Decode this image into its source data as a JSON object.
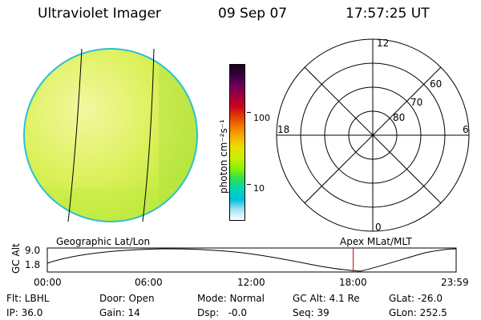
{
  "header": {
    "instrument": "Ultraviolet Imager",
    "date": "09 Sep 07",
    "time": "17:57:25 UT"
  },
  "colorbar": {
    "unit_label": "photon cm⁻²s⁻¹",
    "ticks": [
      "100",
      "10"
    ],
    "colors": [
      "#1a0018",
      "#3a0040",
      "#6a005a",
      "#a0003a",
      "#cc0020",
      "#e23a00",
      "#f07a00",
      "#f6b400",
      "#e8e000",
      "#c8f000",
      "#88f000",
      "#30e050",
      "#00d8b0",
      "#00c0e0",
      "#a0e0f0",
      "#ffffff"
    ]
  },
  "polar": {
    "top_label": "12",
    "bottom_label": "0",
    "left_label": "18",
    "right_label": "6",
    "ring_labels": [
      "60",
      "70",
      "80"
    ]
  },
  "timeline": {
    "ylabel": "GC Alt",
    "yticks": [
      "9.0",
      "1.8"
    ],
    "left_title": "Geographic Lat/Lon",
    "right_title": "Apex MLat/MLT",
    "xticks": [
      "00:00",
      "06:00",
      "12:00",
      "18:00",
      "23:59"
    ],
    "marker_hours": 17.96,
    "marker_color": "#c00000"
  },
  "footer": {
    "rows": [
      [
        "Flt: LBHL",
        "Door: Open",
        "Mode: Normal",
        "GC Alt: 4.1 Re",
        "GLat: -26.0"
      ],
      [
        "IP: 36.0",
        "Gain: 14",
        "Dsp:   -0.0",
        "Seq: 39",
        "GLon: 252.5"
      ]
    ]
  }
}
